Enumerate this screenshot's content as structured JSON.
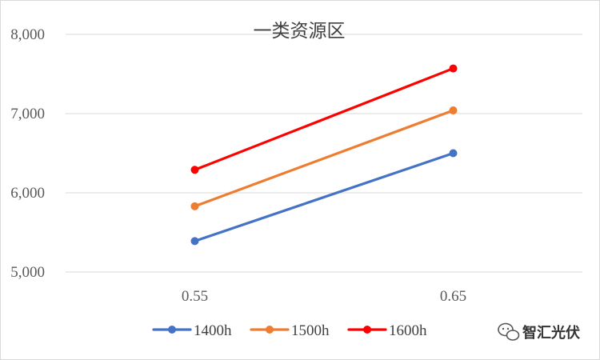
{
  "chart_data": {
    "type": "line",
    "title": "一类资源区",
    "xlabel": "",
    "ylabel": "",
    "categories": [
      "0.55",
      "0.65"
    ],
    "ylim": [
      5000,
      8000
    ],
    "yticks": [
      "5,000",
      "6,000",
      "7,000",
      "8,000"
    ],
    "grid": true,
    "legend_position": "bottom",
    "series": [
      {
        "name": "1400h",
        "color": "#4472C4",
        "values": [
          5390,
          6500
        ]
      },
      {
        "name": "1500h",
        "color": "#ED7D31",
        "values": [
          5830,
          7040
        ]
      },
      {
        "name": "1600h",
        "color": "#FF0000",
        "values": [
          6290,
          7570
        ]
      }
    ]
  },
  "watermark": {
    "text": "智汇光伏",
    "icon": "wechat-icon"
  }
}
